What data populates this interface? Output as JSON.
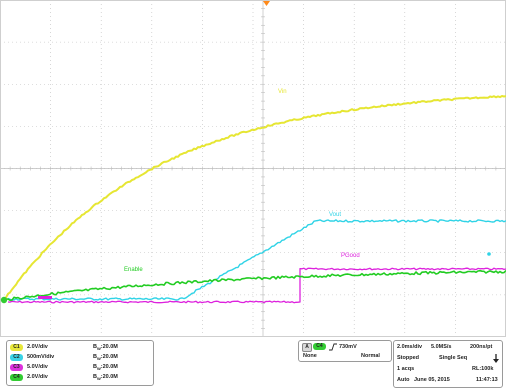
{
  "traces": {
    "vin": {
      "label": "Vin",
      "color": "#e6e633"
    },
    "vout": {
      "label": "Vout",
      "color": "#2fd3e6"
    },
    "enable": {
      "label": "Enable",
      "color": "#22cc22"
    },
    "pgood": {
      "label": "PGood",
      "color": "#dd22dd"
    }
  },
  "channels": [
    {
      "badge": "C1",
      "scale": "2.0V/div",
      "bw_label": "B",
      "bw_sub": "W",
      "bw_value": ":20.0M",
      "color": "#e8e83a"
    },
    {
      "badge": "C2",
      "scale": "500mV/div",
      "bw_label": "B",
      "bw_sub": "W",
      "bw_value": ":20.0M",
      "color": "#3ad3e6"
    },
    {
      "badge": "C3",
      "scale": "5.0V/div",
      "bw_label": "B",
      "bw_sub": "W",
      "bw_value": ":20.0M",
      "color": "#dd33dd"
    },
    {
      "badge": "C4",
      "scale": "2.0V/div",
      "bw_label": "B",
      "bw_sub": "W",
      "bw_value": ":20.0M",
      "color": "#33cc33"
    }
  ],
  "trigger": {
    "mode_badge": "A",
    "source_badge": "C4",
    "level": "730mV",
    "coupling": "None",
    "type": "Normal"
  },
  "acquisition": {
    "timebase": "2.0ms/div",
    "sample_rate": "5.0MS/s",
    "resolution": "200ns/pt",
    "state": "Stopped",
    "sequence": "Single Seq",
    "acqs": "1 acqs",
    "record_length": "RL:100k",
    "trigger_mode": "Auto",
    "date": "June 05, 2015",
    "time": "11:47:13"
  },
  "colors": {
    "grid": "#bdbdbd",
    "pgood": "#dd22dd",
    "vout": "#2fd3e6"
  }
}
